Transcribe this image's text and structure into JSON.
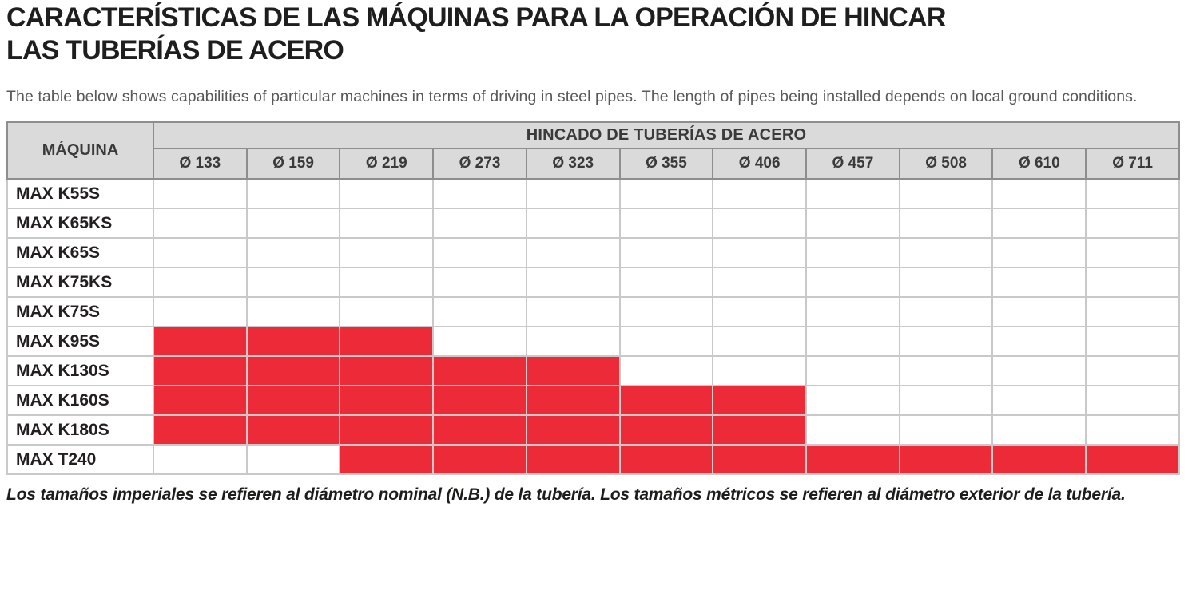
{
  "page": {
    "title_line1": "CARACTERÍSTICAS DE LAS MÁQUINAS PARA LA OPERACIÓN DE HINCAR",
    "title_line2": "LAS TUBERÍAS DE ACERO",
    "intro": "The table below shows capabilities of particular machines in terms of driving in steel pipes. The length of pipes being installed depends on local ground conditions.",
    "footnote": "Los tamaños imperiales se refieren al diámetro nominal (N.B.) de la tubería. Los tamaños métricos se refieren al diámetro exterior de la tubería."
  },
  "table": {
    "machine_header": "MÁQUINA",
    "group_header": "HINCADO DE TUBERÍAS DE ACERO",
    "diameter_headers": [
      "Ø 133",
      "Ø 159",
      "Ø 219",
      "Ø 273",
      "Ø 323",
      "Ø 355",
      "Ø 406",
      "Ø 457",
      "Ø 508",
      "Ø 610",
      "Ø 711"
    ],
    "rows": [
      {
        "machine": "MAX K55S",
        "capable": [
          false,
          false,
          false,
          false,
          false,
          false,
          false,
          false,
          false,
          false,
          false
        ]
      },
      {
        "machine": "MAX K65KS",
        "capable": [
          false,
          false,
          false,
          false,
          false,
          false,
          false,
          false,
          false,
          false,
          false
        ]
      },
      {
        "machine": "MAX K65S",
        "capable": [
          false,
          false,
          false,
          false,
          false,
          false,
          false,
          false,
          false,
          false,
          false
        ]
      },
      {
        "machine": "MAX K75KS",
        "capable": [
          false,
          false,
          false,
          false,
          false,
          false,
          false,
          false,
          false,
          false,
          false
        ]
      },
      {
        "machine": "MAX K75S",
        "capable": [
          false,
          false,
          false,
          false,
          false,
          false,
          false,
          false,
          false,
          false,
          false
        ]
      },
      {
        "machine": "MAX K95S",
        "capable": [
          true,
          true,
          true,
          false,
          false,
          false,
          false,
          false,
          false,
          false,
          false
        ]
      },
      {
        "machine": "MAX K130S",
        "capable": [
          true,
          true,
          true,
          true,
          true,
          false,
          false,
          false,
          false,
          false,
          false
        ]
      },
      {
        "machine": "MAX K160S",
        "capable": [
          true,
          true,
          true,
          true,
          true,
          true,
          true,
          false,
          false,
          false,
          false
        ]
      },
      {
        "machine": "MAX K180S",
        "capable": [
          true,
          true,
          true,
          true,
          true,
          true,
          true,
          false,
          false,
          false,
          false
        ]
      },
      {
        "machine": "MAX T240",
        "capable": [
          false,
          false,
          true,
          true,
          true,
          true,
          true,
          true,
          true,
          true,
          true
        ]
      }
    ]
  },
  "colors": {
    "capable_fill": "#ED2A38",
    "header_bg": "#DADADA",
    "title_text": "#1E1E1E",
    "intro_text": "#58585A"
  }
}
